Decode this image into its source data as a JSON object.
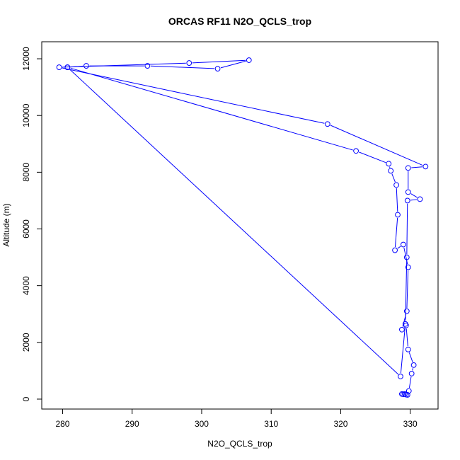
{
  "chart_data": {
    "type": "line",
    "title": "ORCAS RF11 N2O_QCLS_trop",
    "xlabel": "N2O_QCLS_trop",
    "ylabel": "Altitude (m)",
    "xlim": [
      277,
      334
    ],
    "ylim": [
      -350,
      12600
    ],
    "xticks": [
      280,
      290,
      300,
      310,
      320,
      330
    ],
    "yticks": [
      0,
      2000,
      4000,
      6000,
      8000,
      10000,
      12000
    ],
    "grid": false,
    "legend": "none",
    "color": "#0000ff",
    "marker": "open-circle",
    "series": [
      {
        "points": [
          [
            328.8,
            180
          ],
          [
            329.0,
            170
          ],
          [
            329.2,
            180
          ],
          [
            329.4,
            160
          ],
          [
            329.6,
            150
          ],
          [
            329.8,
            290
          ],
          [
            330.2,
            900
          ],
          [
            330.5,
            1200
          ],
          [
            329.7,
            1750
          ],
          [
            329.4,
            2600
          ],
          [
            328.8,
            2450
          ],
          [
            329.5,
            3100
          ],
          [
            329.7,
            4650
          ],
          [
            329.0,
            5450
          ],
          [
            327.8,
            5250
          ],
          [
            328.2,
            6500
          ],
          [
            328.0,
            7550
          ],
          [
            327.2,
            8050
          ],
          [
            326.9,
            8300
          ],
          [
            322.2,
            8750
          ],
          [
            280.7,
            11700
          ],
          [
            283.4,
            11750
          ],
          [
            292.2,
            11750
          ],
          [
            302.3,
            11650
          ],
          [
            306.8,
            11950
          ],
          [
            298.2,
            11850
          ],
          [
            279.5,
            11700
          ],
          [
            318.1,
            9700
          ],
          [
            332.2,
            8200
          ],
          [
            329.7,
            8150
          ],
          [
            329.7,
            7300
          ],
          [
            331.4,
            7050
          ],
          [
            329.6,
            7000
          ],
          [
            329.5,
            5000
          ],
          [
            329.3,
            2650
          ],
          [
            328.6,
            800
          ],
          [
            280.7,
            11700
          ]
        ]
      }
    ]
  }
}
